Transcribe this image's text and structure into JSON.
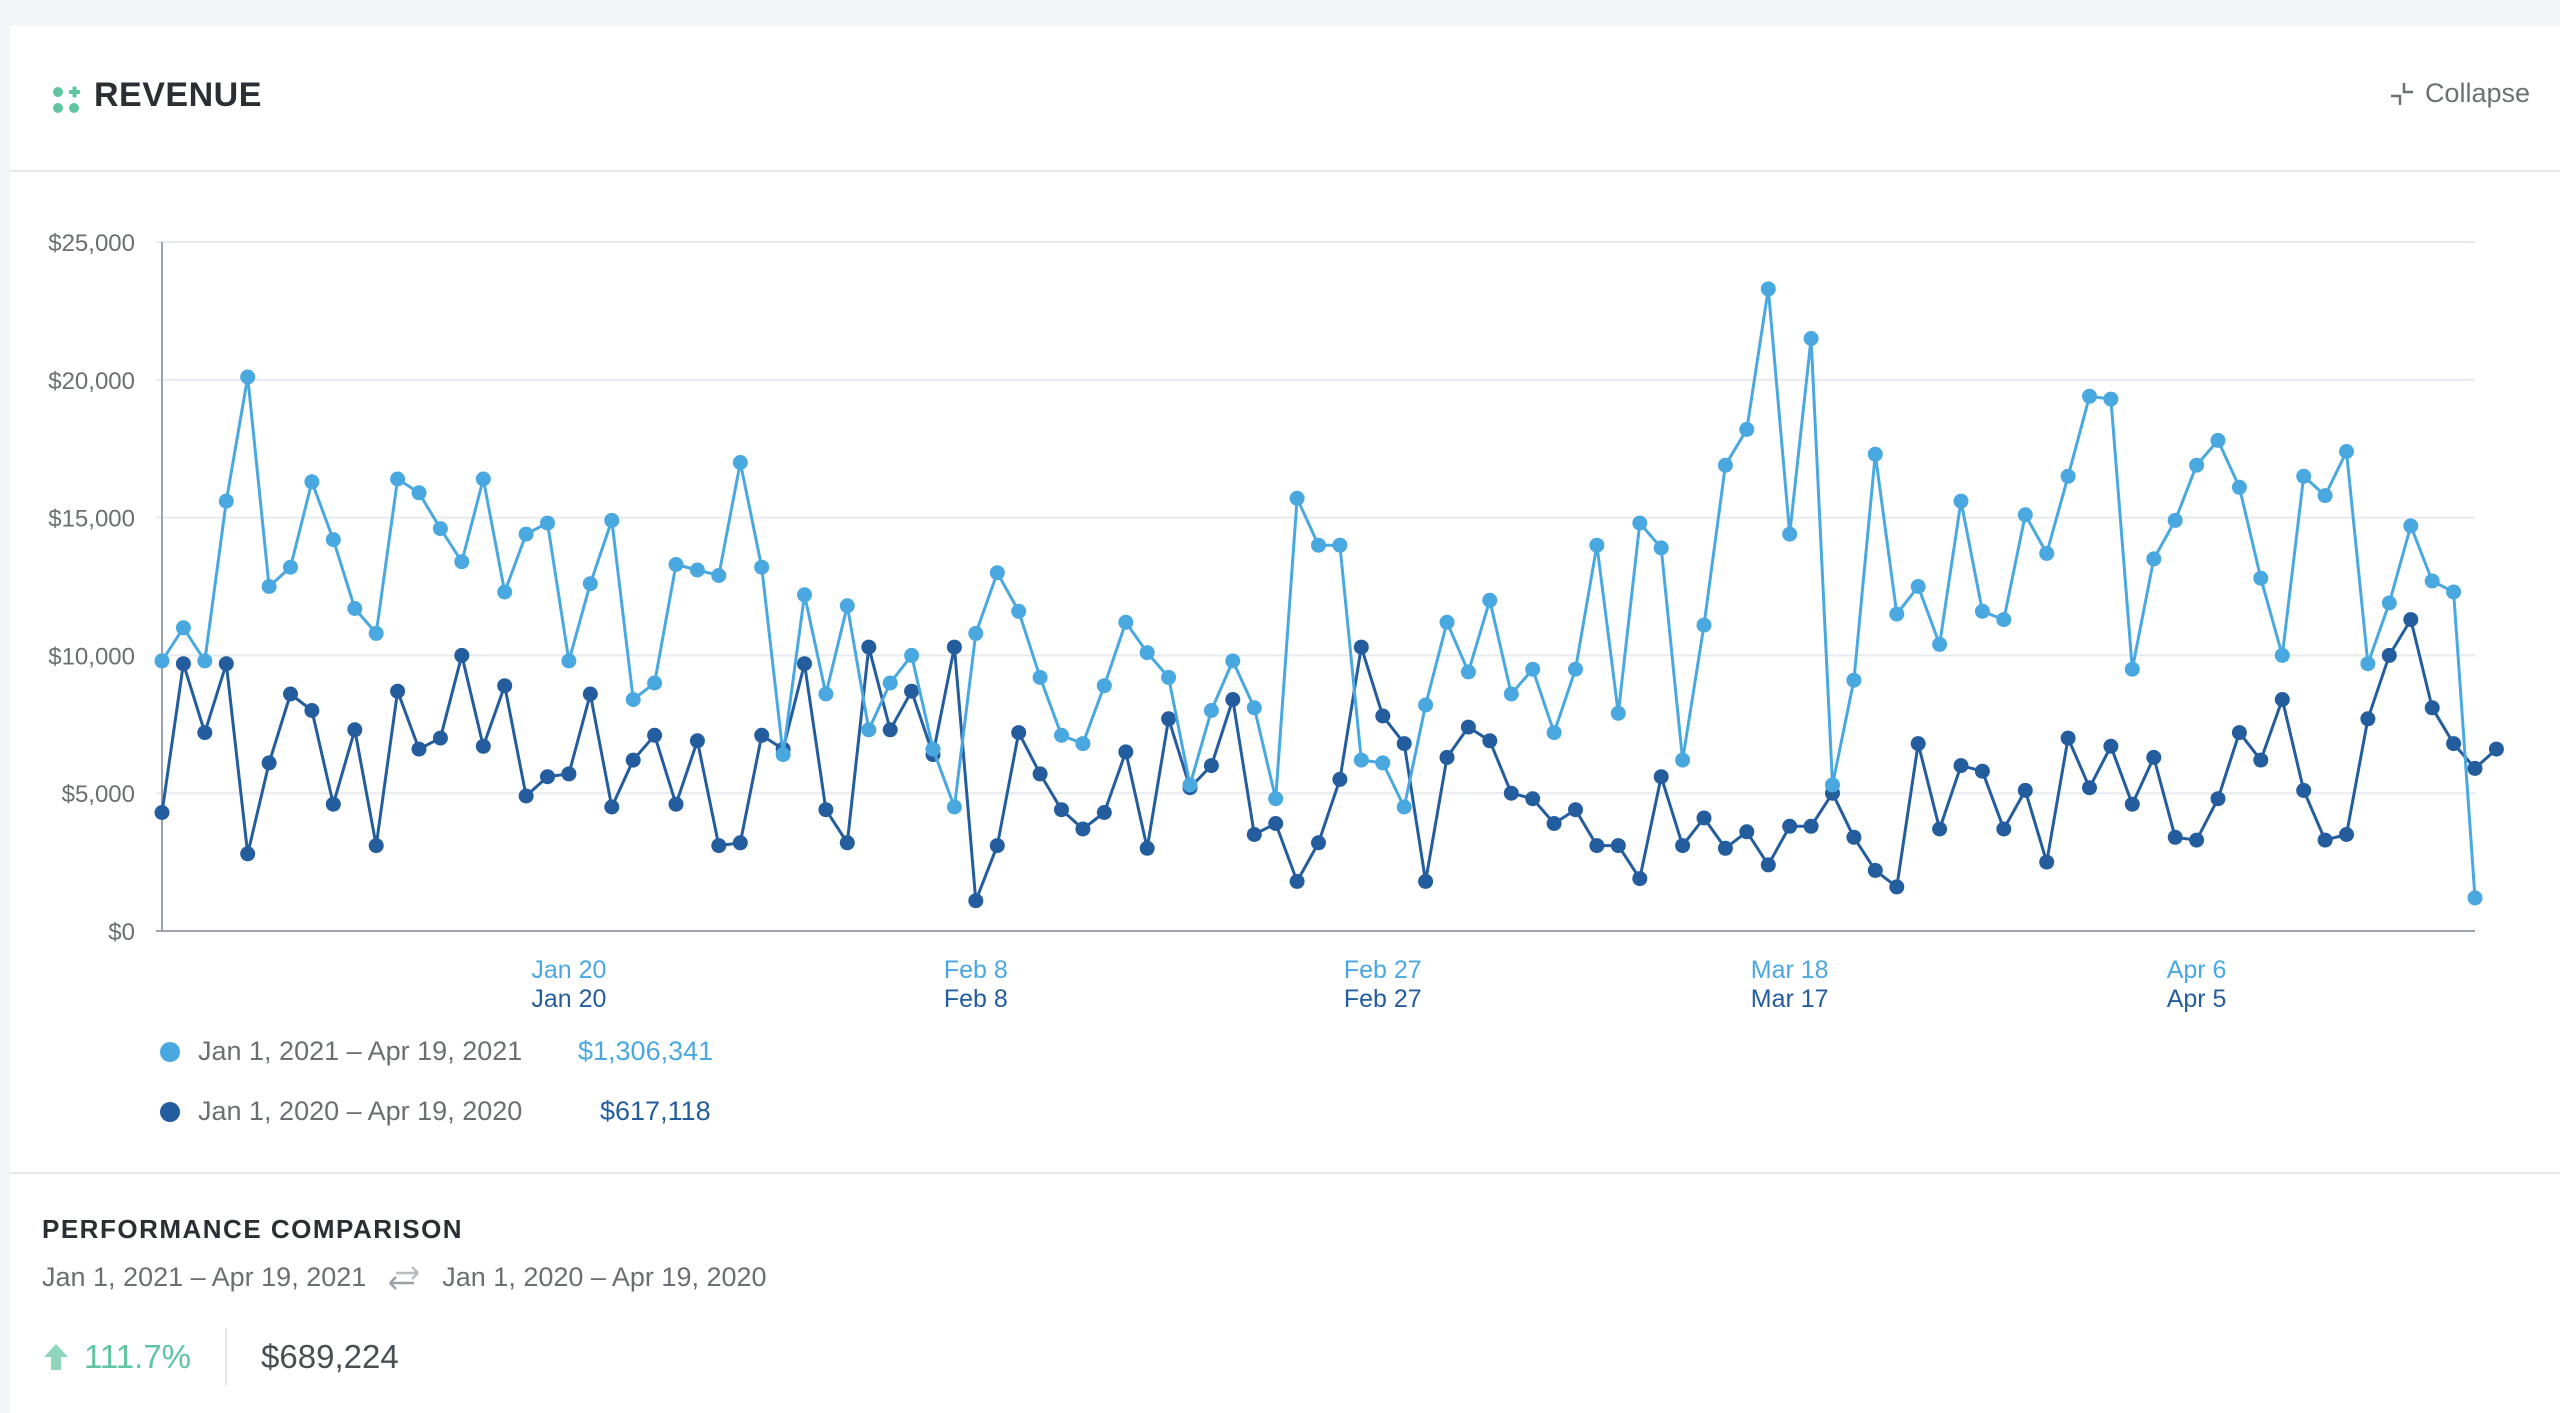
{
  "header": {
    "title": "REVENUE",
    "collapse_label": "Collapse",
    "icon": "widget-grid-icon"
  },
  "colors": {
    "current": "#4aa8e0",
    "previous": "#245d9e",
    "positive": "#5fc4a0"
  },
  "chart_data": {
    "type": "line",
    "title": "",
    "xlabel": "",
    "ylabel": "",
    "ylim": [
      0,
      25000
    ],
    "y_ticks": [
      "$0",
      "$5,000",
      "$10,000",
      "$15,000",
      "$20,000",
      "$25,000"
    ],
    "grid": true,
    "x_tick_positions": [
      19,
      38,
      57,
      76,
      95
    ],
    "x_ticks_current": [
      "Jan 20",
      "Feb 8",
      "Feb 27",
      "Mar 18",
      "Apr 6"
    ],
    "x_ticks_previous": [
      "Jan 20",
      "Feb 8",
      "Feb 27",
      "Mar 17",
      "Apr 5"
    ],
    "series": [
      {
        "name": "Jan 1, 2021 – Apr 19, 2021",
        "values": [
          9800,
          11000,
          9800,
          15600,
          20100,
          12500,
          13200,
          16300,
          14200,
          11700,
          10800,
          16400,
          15900,
          14600,
          13400,
          16400,
          12300,
          14400,
          14800,
          9800,
          12600,
          14900,
          8400,
          9000,
          13300,
          13100,
          12900,
          17000,
          13200,
          6400,
          12200,
          8600,
          11800,
          7300,
          9000,
          10000,
          6600,
          4500,
          10800,
          13000,
          11600,
          9200,
          7100,
          6800,
          8900,
          11200,
          10100,
          9200,
          5300,
          8000,
          9800,
          8100,
          4800,
          15700,
          14000,
          14000,
          6200,
          6100,
          4500,
          8200,
          11200,
          9400,
          12000,
          8600,
          9500,
          7200,
          9500,
          14000,
          7900,
          14800,
          13900,
          6200,
          11100,
          16900,
          18200,
          23300,
          14400,
          21500,
          5300,
          9100,
          17300,
          11500,
          12500,
          10400,
          15600,
          11600,
          11300,
          15100,
          13700,
          16500,
          19400,
          19300,
          9500,
          13500,
          14900,
          16900,
          17800,
          16100,
          12800,
          10000,
          16500,
          15800,
          17400,
          9700,
          11900,
          14700,
          12700,
          12300,
          1200
        ],
        "total": "$1,306,341"
      },
      {
        "name": "Jan 1, 2020 – Apr 19, 2020",
        "values": [
          4300,
          9700,
          7200,
          9700,
          2800,
          6100,
          8600,
          8000,
          4600,
          7300,
          3100,
          8700,
          6600,
          7000,
          10000,
          6700,
          8900,
          4900,
          5600,
          5700,
          8600,
          4500,
          6200,
          7100,
          4600,
          6900,
          3100,
          3200,
          7100,
          6600,
          9700,
          4400,
          3200,
          10300,
          7300,
          8700,
          6400,
          10300,
          1100,
          3100,
          7200,
          5700,
          4400,
          3700,
          4300,
          6500,
          3000,
          7700,
          5200,
          6000,
          8400,
          3500,
          3900,
          1800,
          3200,
          5500,
          10300,
          7800,
          6800,
          1800,
          6300,
          7400,
          6900,
          5000,
          4800,
          3900,
          4400,
          3100,
          3100,
          1900,
          5600,
          3100,
          4100,
          3000,
          3600,
          2400,
          3800,
          3800,
          5000,
          3400,
          2200,
          1600,
          6800,
          3700,
          6000,
          5800,
          3700,
          5100,
          2500,
          7000,
          5200,
          6700,
          4600,
          6300,
          3400,
          3300,
          4800,
          7200,
          6200,
          8400,
          5100,
          3300,
          3500,
          7700,
          10000,
          11300,
          8100,
          6800,
          5900,
          6600
        ],
        "total": "$617,118"
      }
    ]
  },
  "performance": {
    "title": "PERFORMANCE COMPARISON",
    "current_range": "Jan 1, 2021 – Apr 19, 2021",
    "previous_range": "Jan 1, 2020 – Apr 19, 2020",
    "change_pct": "111.7%",
    "change_abs": "$689,224"
  }
}
